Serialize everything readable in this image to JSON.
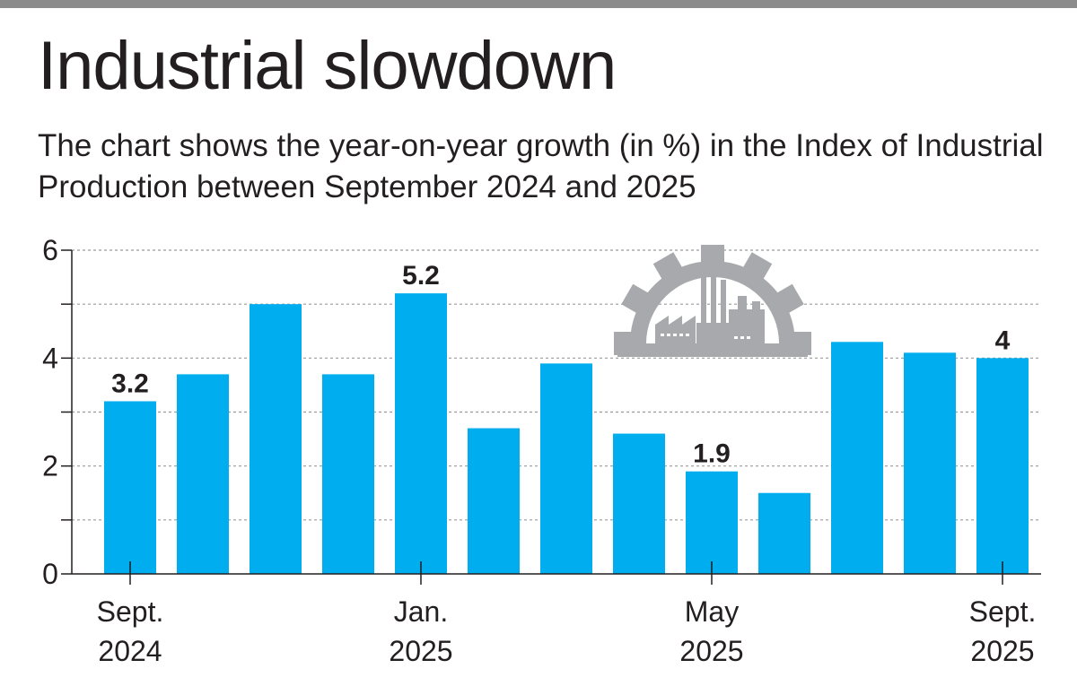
{
  "header": {
    "title": "Industrial slowdown",
    "subtitle": "The chart shows the year-on-year growth (in %) in the Index of Industrial Production between September 2024 and 2025"
  },
  "colors": {
    "bar": "#00aeef",
    "grid": "#9a9a9a",
    "axis": "#231f20",
    "icon": "#a7a9ac"
  },
  "icon": "factory-gear-icon",
  "chart_data": {
    "type": "bar",
    "title": "Industrial slowdown",
    "xlabel": "",
    "ylabel": "",
    "ylim": [
      0,
      6
    ],
    "yticks": [
      "0",
      "2",
      "4",
      "6"
    ],
    "grid": true,
    "categories": [
      "Sep 2024",
      "Oct 2024",
      "Nov 2024",
      "Dec 2024",
      "Jan 2025",
      "Feb 2025",
      "Mar 2025",
      "Apr 2025",
      "May 2025",
      "Jun 2025",
      "Jul 2025",
      "Aug 2025",
      "Sep 2025"
    ],
    "values": [
      3.2,
      3.7,
      5.0,
      3.7,
      5.2,
      2.7,
      3.9,
      2.6,
      1.9,
      1.5,
      4.3,
      4.1,
      4.0
    ],
    "data_labels": [
      {
        "index": 0,
        "text": "3.2"
      },
      {
        "index": 4,
        "text": "5.2"
      },
      {
        "index": 8,
        "text": "1.9"
      },
      {
        "index": 12,
        "text": "4"
      }
    ],
    "x_tick_labels": [
      {
        "index": 0,
        "line1": "Sept.",
        "line2": "2024"
      },
      {
        "index": 4,
        "line1": "Jan.",
        "line2": "2025"
      },
      {
        "index": 8,
        "line1": "May",
        "line2": "2025"
      },
      {
        "index": 12,
        "line1": "Sept.",
        "line2": "2025"
      }
    ]
  }
}
